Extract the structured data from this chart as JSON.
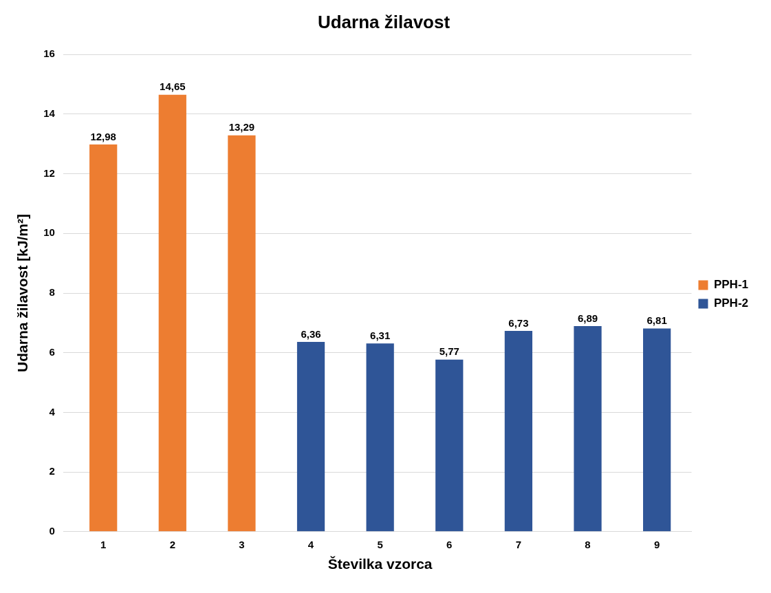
{
  "chart_data": {
    "type": "bar",
    "title": "Udarna žilavost",
    "xlabel": "Številka vzorca",
    "ylabel": "Udarna žilavost [kJ/m²]",
    "categories": [
      "1",
      "2",
      "3",
      "4",
      "5",
      "6",
      "7",
      "8",
      "9"
    ],
    "series": [
      {
        "name": "PPH-1",
        "color": "#ed7d31",
        "values": [
          12.98,
          14.65,
          13.29,
          null,
          null,
          null,
          null,
          null,
          null
        ],
        "value_labels": [
          "12,98",
          "14,65",
          "13,29",
          null,
          null,
          null,
          null,
          null,
          null
        ]
      },
      {
        "name": "PPH-2",
        "color": "#2f5597",
        "values": [
          null,
          null,
          null,
          6.36,
          6.31,
          5.77,
          6.73,
          6.89,
          6.81
        ],
        "value_labels": [
          null,
          null,
          null,
          "6,36",
          "6,31",
          "5,77",
          "6,73",
          "6,89",
          "6,81"
        ]
      }
    ],
    "ylim": [
      0,
      16
    ],
    "yticks": [
      0,
      2,
      4,
      6,
      8,
      10,
      12,
      14,
      16
    ],
    "grid": "y",
    "legend": "right"
  }
}
